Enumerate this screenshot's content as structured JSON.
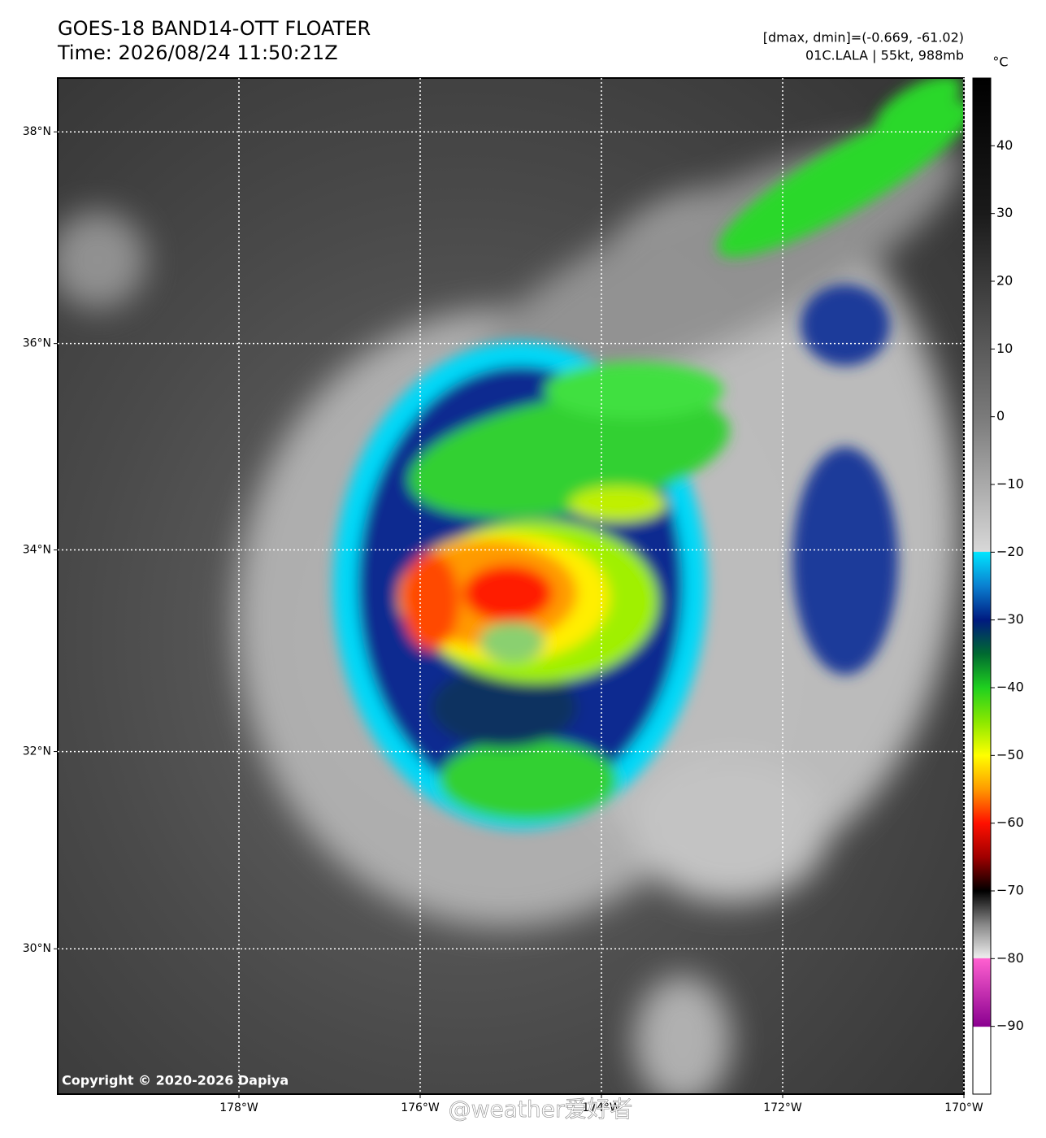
{
  "header": {
    "title": "GOES-18 BAND14-OTT FLOATER",
    "time": "Time: 2026/08/24 11:50:21Z",
    "range_note": "[dmax, dmin]=(-0.669, -61.02)",
    "storm": "01C.LALA | 55kt, 988mb"
  },
  "map": {
    "lon_range": [
      -180,
      -170
    ],
    "lat_range": [
      28.5,
      38.5
    ],
    "grid": true,
    "lon_ticks": [
      {
        "value": -178,
        "label": "178°W"
      },
      {
        "value": -176,
        "label": "176°W"
      },
      {
        "value": -174,
        "label": "174°W"
      },
      {
        "value": -172,
        "label": "172°W"
      },
      {
        "value": -170,
        "label": "170°W"
      }
    ],
    "lat_ticks": [
      {
        "value": 38,
        "label": "38°N"
      },
      {
        "value": 36,
        "label": "36°N"
      },
      {
        "value": 34,
        "label": "34°N"
      },
      {
        "value": 32,
        "label": "32°N"
      },
      {
        "value": 30,
        "label": "30°N"
      }
    ]
  },
  "colorbar": {
    "unit": "°C",
    "range": [
      -100,
      50
    ],
    "ticks": [
      40,
      30,
      20,
      10,
      0,
      {
        "value": -10,
        "label": "−10"
      },
      {
        "value": -20,
        "label": "−20"
      },
      {
        "value": -30,
        "label": "−30"
      },
      {
        "value": -40,
        "label": "−40"
      },
      {
        "value": -50,
        "label": "−50"
      },
      {
        "value": -60,
        "label": "−60"
      },
      {
        "value": -70,
        "label": "−70"
      },
      {
        "value": -80,
        "label": "−80"
      },
      {
        "value": -90,
        "label": "−90"
      }
    ],
    "stops": [
      [
        50,
        "#000000"
      ],
      [
        30,
        "#1a1a1a"
      ],
      [
        0,
        "#7a7a7a"
      ],
      [
        -19.9,
        "#d8d8d8"
      ],
      [
        -20,
        "#00e5ff"
      ],
      [
        -25,
        "#0a7fd0"
      ],
      [
        -30,
        "#001a80"
      ],
      [
        -35,
        "#006a30"
      ],
      [
        -40,
        "#1fd01f"
      ],
      [
        -45,
        "#8ae800"
      ],
      [
        -50,
        "#ffff00"
      ],
      [
        -55,
        "#ff9a00"
      ],
      [
        -60,
        "#ff1000"
      ],
      [
        -65,
        "#a00000"
      ],
      [
        -70,
        "#000000"
      ],
      [
        -75,
        "#888888"
      ],
      [
        -79.9,
        "#eeeeee"
      ],
      [
        -80,
        "#ff60d0"
      ],
      [
        -90,
        "#8a0090"
      ],
      [
        -90.1,
        "#ffffff"
      ],
      [
        -100,
        "#ffffff"
      ]
    ]
  },
  "copyright": "Copyright © 2020-2026 Dapiya",
  "watermark": "@weather爱好者"
}
